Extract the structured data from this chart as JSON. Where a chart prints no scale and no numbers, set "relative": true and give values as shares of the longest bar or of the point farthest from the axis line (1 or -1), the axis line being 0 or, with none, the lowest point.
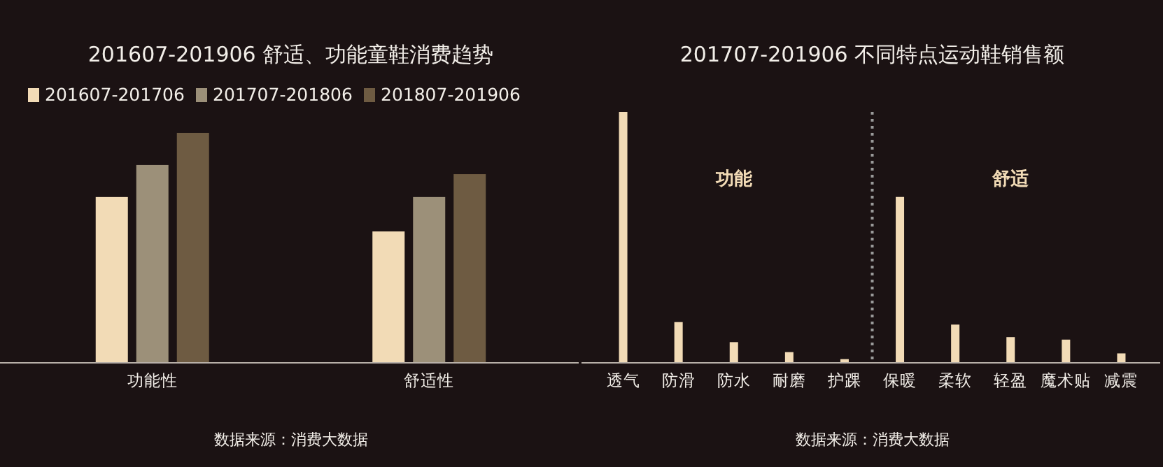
{
  "chart_data": [
    {
      "type": "bar",
      "title": "201607-201906 舒适、功能童鞋消费趋势",
      "categories": [
        "功能性",
        "舒适性"
      ],
      "relative": true,
      "legend": "top",
      "series": [
        {
          "name": "201607-201706",
          "color": "#f2dbb6",
          "values": [
            0.72,
            0.57
          ]
        },
        {
          "name": "201707-201806",
          "color": "#9c9079",
          "values": [
            0.86,
            0.72
          ]
        },
        {
          "name": "201807-201906",
          "color": "#6e5b42",
          "values": [
            1,
            0.82
          ]
        }
      ],
      "annotations": [
        "数据来源：消费大数据"
      ]
    },
    {
      "type": "bar",
      "title": "201707-201906 不同特点运动鞋销售额",
      "categories": [
        "透气",
        "防滑",
        "防水",
        "耐磨",
        "护踝",
        "保暖",
        "柔软",
        "轻盈",
        "魔术贴",
        "减震"
      ],
      "relative": true,
      "series": [
        {
          "color": "#f2dbb6",
          "values": [
            1,
            0.16,
            0.08,
            0.04,
            0.012,
            0.66,
            0.15,
            0.1,
            0.09,
            0.035
          ]
        }
      ],
      "annotations": [
        "功能",
        "舒适",
        "数据来源：消费大数据"
      ]
    }
  ]
}
